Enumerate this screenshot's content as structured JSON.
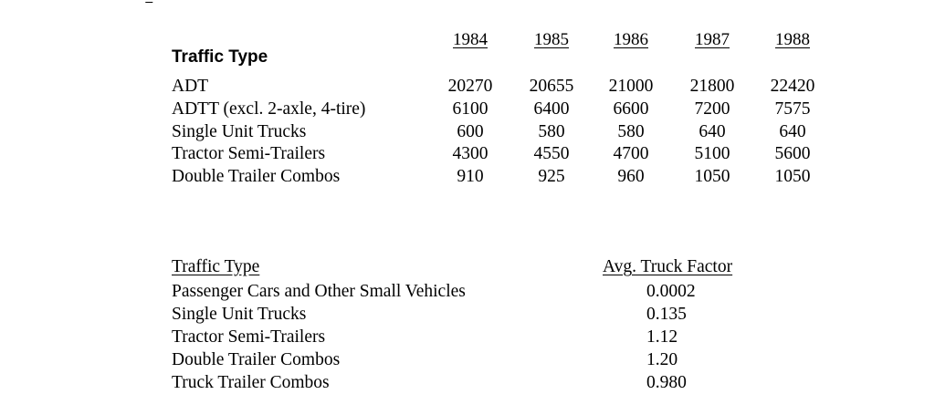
{
  "table1": {
    "heading": "Traffic Type",
    "years": [
      "1984",
      "1985",
      "1986",
      "1987",
      "1988"
    ],
    "rows": [
      {
        "label": "ADT",
        "values": [
          "20270",
          "20655",
          "21000",
          "21800",
          "22420"
        ]
      },
      {
        "label": "ADTT (excl. 2-axle, 4-tire)",
        "values": [
          "6100",
          "6400",
          "6600",
          "7200",
          "7575"
        ]
      },
      {
        "label": "Single Unit Trucks",
        "values": [
          "600",
          "580",
          "580",
          "640",
          "640"
        ]
      },
      {
        "label": "Tractor Semi-Trailers",
        "values": [
          "4300",
          "4550",
          "4700",
          "5100",
          "5600"
        ]
      },
      {
        "label": "Double Trailer Combos",
        "values": [
          "910",
          "925",
          "960",
          "1050",
          "1050"
        ]
      }
    ]
  },
  "table2": {
    "heading_left": "Traffic Type",
    "heading_right": "Avg. Truck Factor",
    "rows": [
      {
        "label": "Passenger Cars and Other Small Vehicles",
        "value": "0.0002"
      },
      {
        "label": "Single Unit Trucks",
        "value": "0.135"
      },
      {
        "label": "Tractor Semi-Trailers",
        "value": "1.12"
      },
      {
        "label": "Double Trailer Combos",
        "value": "1.20"
      },
      {
        "label": "Truck Trailer Combos",
        "value": "0.980"
      }
    ]
  }
}
